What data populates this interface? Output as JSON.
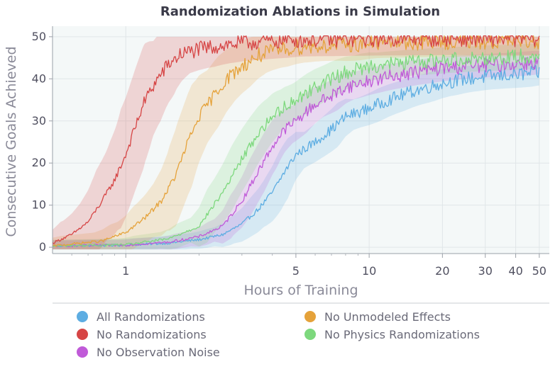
{
  "chart_data": {
    "type": "line",
    "title": "Randomization Ablations in Simulation",
    "xlabel": "Hours of Training",
    "ylabel": "Consecutive Goals Achieved",
    "x_scale": "log",
    "xlim": [
      0.5,
      55
    ],
    "ylim": [
      -1.5,
      52.5
    ],
    "x_ticks": [
      1,
      5,
      10,
      20,
      30,
      40,
      50
    ],
    "x_tick_labels": [
      "1",
      "5",
      "10",
      "20",
      "30",
      "40",
      "50"
    ],
    "y_ticks": [
      0,
      10,
      20,
      30,
      40,
      50
    ],
    "y_tick_labels": [
      "0",
      "10",
      "20",
      "30",
      "40",
      "50"
    ],
    "grid": true,
    "legend_position": "bottom",
    "shaded_band": "variability range around each series",
    "series": [
      {
        "name": "All Randomizations",
        "color": "#5dade2",
        "x": [
          0.5,
          1.0,
          1.5,
          2.0,
          2.5,
          3.0,
          3.5,
          4.0,
          4.5,
          5.0,
          6.0,
          7.0,
          8.0,
          10.0,
          12.0,
          15.0,
          20.0,
          25.0,
          30.0,
          40.0,
          50.0
        ],
        "values": [
          0.3,
          0.5,
          1.0,
          1.8,
          3.0,
          5.5,
          9.0,
          13.0,
          18.0,
          22.0,
          25.0,
          28.0,
          31.0,
          33.0,
          35.0,
          37.0,
          39.0,
          40.0,
          40.5,
          41.0,
          41.5
        ],
        "band": 4.0
      },
      {
        "name": "No Randomizations",
        "color": "#d64545",
        "x": [
          0.5,
          0.6,
          0.7,
          0.8,
          0.9,
          1.0,
          1.1,
          1.2,
          1.35,
          1.5,
          1.7,
          2.0,
          2.5,
          3.0,
          4.0,
          5.0,
          7.0,
          10.0,
          20.0,
          30.0,
          50.0
        ],
        "values": [
          1.0,
          3.0,
          6.0,
          11.0,
          16.0,
          22.0,
          29.0,
          35.0,
          40.0,
          43.5,
          46.0,
          47.0,
          48.0,
          48.5,
          49.0,
          49.3,
          49.4,
          49.5,
          49.6,
          49.6,
          49.6
        ],
        "band": 6.0
      },
      {
        "name": "No Observation Noise",
        "color": "#c05ad8",
        "x": [
          0.5,
          1.0,
          1.5,
          2.0,
          2.5,
          3.0,
          3.5,
          4.0,
          4.5,
          5.0,
          6.0,
          7.0,
          8.0,
          10.0,
          12.0,
          15.0,
          20.0,
          25.0,
          30.0,
          40.0,
          50.0
        ],
        "values": [
          0.3,
          0.5,
          1.2,
          2.5,
          5.0,
          11.0,
          18.0,
          24.0,
          28.0,
          30.0,
          34.0,
          36.0,
          38.0,
          39.5,
          40.5,
          41.5,
          42.5,
          43.0,
          43.2,
          43.6,
          44.0
        ],
        "band": 3.5
      },
      {
        "name": "No Unmodeled Effects",
        "color": "#e5a23a",
        "x": [
          0.5,
          0.8,
          1.0,
          1.2,
          1.4,
          1.6,
          1.8,
          2.0,
          2.3,
          2.6,
          3.0,
          3.5,
          4.0,
          5.0,
          6.0,
          8.0,
          10.0,
          15.0,
          20.0,
          30.0,
          50.0
        ],
        "values": [
          0.3,
          1.5,
          3.5,
          7.0,
          11.0,
          17.0,
          25.0,
          31.0,
          36.0,
          40.0,
          43.0,
          45.5,
          46.5,
          47.5,
          47.8,
          48.0,
          48.5,
          48.7,
          48.8,
          48.9,
          49.0
        ],
        "band": 5.0
      },
      {
        "name": "No Physics Randomizations",
        "color": "#7dd87d",
        "x": [
          0.5,
          1.0,
          1.5,
          2.0,
          2.5,
          3.0,
          3.5,
          4.0,
          4.5,
          5.0,
          6.0,
          7.0,
          8.0,
          10.0,
          12.0,
          15.0,
          20.0,
          25.0,
          30.0,
          40.0,
          50.0
        ],
        "values": [
          0.3,
          0.6,
          2.0,
          5.0,
          13.0,
          21.0,
          27.0,
          31.0,
          33.5,
          35.0,
          38.0,
          40.0,
          41.5,
          43.0,
          43.5,
          44.0,
          44.5,
          44.8,
          45.0,
          45.3,
          45.5
        ],
        "band": 4.0
      }
    ]
  }
}
